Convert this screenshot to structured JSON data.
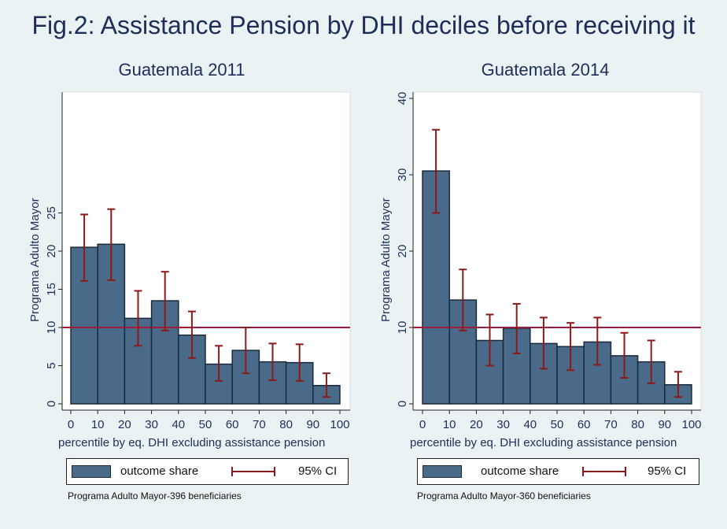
{
  "figure_title": "Fig.2: Assistance Pension by DHI deciles before receiving it",
  "colors": {
    "bar": "#4a6a8a",
    "bar_edge": "#1a2a3a",
    "ci": "#8b1a1a",
    "refline": "#a01d3a",
    "text": "#1e2d5a",
    "background": "#eaf2f3"
  },
  "legend": {
    "bar_label": "outcome share",
    "ci_label": "95% CI"
  },
  "chart_data": [
    {
      "type": "bar",
      "title": "Guatemala 2011",
      "xlabel": "percentile by eq. DHI excluding assistance pension",
      "ylabel": "Programa Adulto Mayor",
      "xlim": [
        0,
        100
      ],
      "ylim": [
        0,
        40
      ],
      "xticks": [
        0,
        10,
        20,
        30,
        40,
        50,
        60,
        70,
        80,
        90,
        100
      ],
      "yticks": [
        0,
        5,
        10,
        15,
        20,
        25
      ],
      "reference_line_y": 10,
      "bins": [
        [
          0,
          10
        ],
        [
          10,
          20
        ],
        [
          20,
          30
        ],
        [
          30,
          40
        ],
        [
          40,
          50
        ],
        [
          50,
          60
        ],
        [
          60,
          70
        ],
        [
          70,
          80
        ],
        [
          80,
          90
        ],
        [
          90,
          100
        ]
      ],
      "values": [
        20.5,
        20.9,
        11.2,
        13.5,
        9.0,
        5.2,
        7.0,
        5.5,
        5.4,
        2.4
      ],
      "ci_low": [
        16.1,
        16.2,
        7.6,
        9.6,
        6.0,
        3.0,
        4.0,
        3.1,
        3.0,
        0.9
      ],
      "ci_high": [
        24.8,
        25.5,
        14.8,
        17.3,
        12.1,
        7.6,
        10.0,
        7.9,
        7.8,
        4.0
      ],
      "note": "Programa Adulto Mayor-396 beneficiaries"
    },
    {
      "type": "bar",
      "title": "Guatemala 2014",
      "xlabel": "percentile by eq. DHI excluding assistance pension",
      "ylabel": "Programa Adulto Mayor",
      "xlim": [
        0,
        100
      ],
      "ylim": [
        0,
        40
      ],
      "xticks": [
        0,
        10,
        20,
        30,
        40,
        50,
        60,
        70,
        80,
        90,
        100
      ],
      "yticks": [
        0,
        10,
        20,
        30,
        40
      ],
      "reference_line_y": 10,
      "bins": [
        [
          0,
          10
        ],
        [
          10,
          20
        ],
        [
          20,
          30
        ],
        [
          30,
          40
        ],
        [
          40,
          50
        ],
        [
          50,
          60
        ],
        [
          60,
          70
        ],
        [
          70,
          80
        ],
        [
          80,
          90
        ],
        [
          90,
          100
        ]
      ],
      "values": [
        30.5,
        13.6,
        8.3,
        9.9,
        7.9,
        7.5,
        8.1,
        6.3,
        5.5,
        2.5
      ],
      "ci_low": [
        25.0,
        9.6,
        5.0,
        6.6,
        4.6,
        4.4,
        5.1,
        3.4,
        2.7,
        0.9
      ],
      "ci_high": [
        35.9,
        17.6,
        11.7,
        13.1,
        11.3,
        10.6,
        11.3,
        9.3,
        8.3,
        4.2
      ],
      "note": "Programa Adulto Mayor-360 beneficiaries"
    }
  ]
}
